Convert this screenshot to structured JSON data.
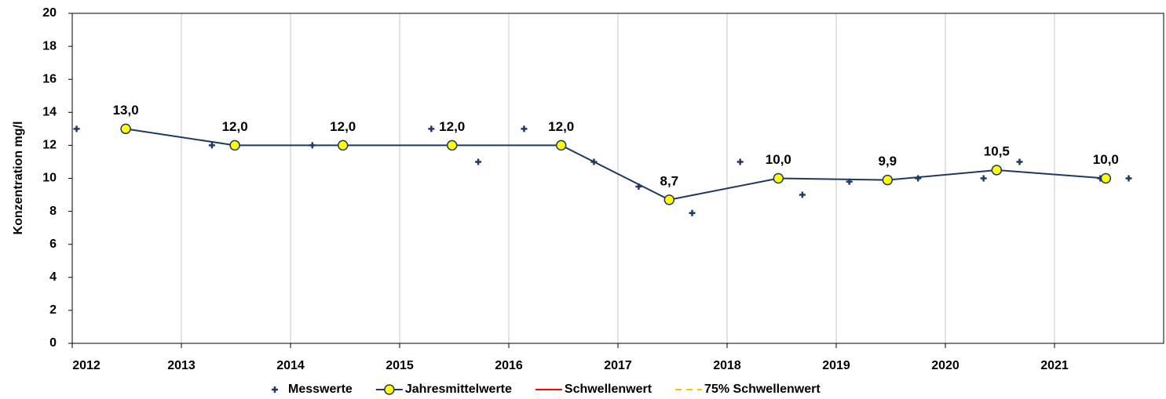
{
  "chart_data": {
    "type": "line",
    "y_label": "Konzentration mg/l",
    "xlim": [
      2012,
      2022
    ],
    "xticks": [
      2012,
      2013,
      2014,
      2015,
      2016,
      2017,
      2018,
      2019,
      2020,
      2021
    ],
    "ylim": [
      0,
      20
    ],
    "yticks": [
      0,
      2,
      4,
      6,
      8,
      10,
      12,
      14,
      16,
      18,
      20
    ],
    "grid": "x",
    "legend": "bottom",
    "series": [
      {
        "name": "Messwerte",
        "color": "#1f3864",
        "marker": "plus",
        "line": false,
        "x": [
          2012.04,
          2013.28,
          2014.2,
          2015.29,
          2015.72,
          2016.14,
          2016.78,
          2017.19,
          2017.68,
          2018.12,
          2018.69,
          2019.12,
          2019.75,
          2020.35,
          2020.68,
          2021.42,
          2021.68
        ],
        "values": [
          13,
          12,
          12,
          13,
          11,
          13,
          11,
          9.5,
          7.9,
          11,
          9,
          9.8,
          10,
          10,
          11,
          10,
          10
        ]
      },
      {
        "name": "Jahresmittelwerte",
        "color": "#1f3864",
        "marker": "circle",
        "marker_fill": "#ffff00",
        "line": true,
        "x": [
          2012.49,
          2013.49,
          2014.48,
          2015.48,
          2016.48,
          2017.47,
          2018.47,
          2019.47,
          2020.47,
          2021.47
        ],
        "values": [
          13.0,
          12.0,
          12.0,
          12.0,
          12.0,
          8.7,
          10.0,
          9.9,
          10.5,
          10.0
        ],
        "value_labels": [
          "13,0",
          "12,0",
          "12,0",
          "12,0",
          "12,0",
          "8,7",
          "10,0",
          "9,9",
          "10,5",
          "10,0"
        ]
      },
      {
        "name": "Schwellenwert",
        "color": "#ff0000",
        "line": true
      },
      {
        "name": "75% Schwellenwert",
        "color": "#ffc000",
        "line": true,
        "dashed": true
      }
    ]
  }
}
